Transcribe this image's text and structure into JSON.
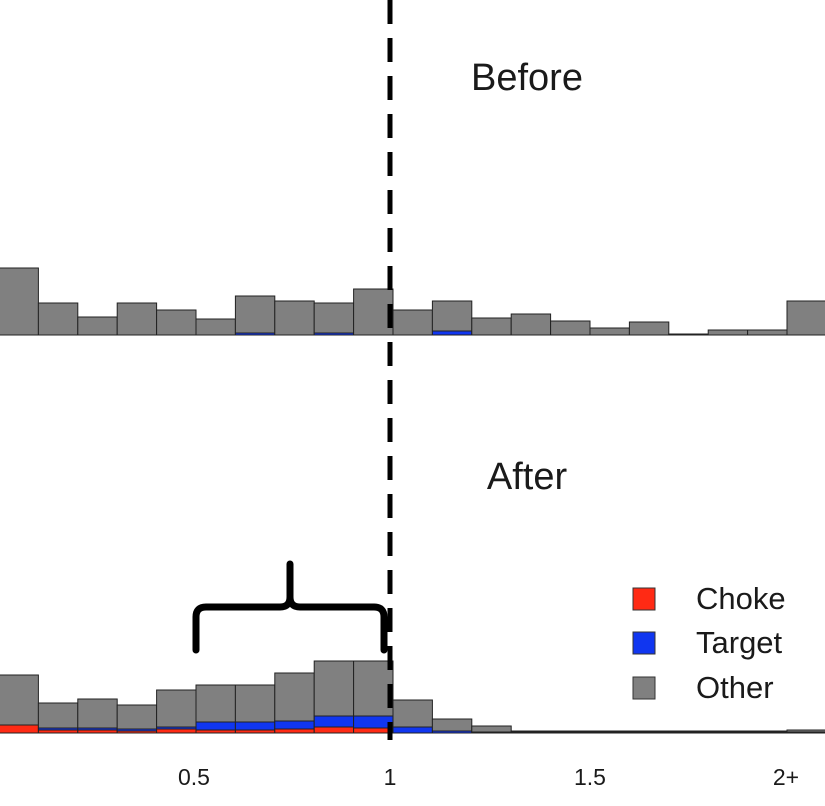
{
  "chart_data": [
    {
      "type": "bar",
      "stacked": true,
      "title": "Before",
      "x_bins": [
        "0-0.1",
        "0.1-0.2",
        "0.2-0.3",
        "0.3-0.4",
        "0.4-0.5",
        "0.5-0.6",
        "0.6-0.7",
        "0.7-0.8",
        "0.8-0.9",
        "0.9-1.0",
        "1.0-1.1",
        "1.1-1.2",
        "1.2-1.3",
        "1.3-1.4",
        "1.4-1.5",
        "1.5-1.6",
        "1.6-1.7",
        "1.7-1.8",
        "1.8-1.9",
        "1.9-2.0",
        "2+"
      ],
      "series": [
        {
          "name": "Choke",
          "color": "#ff2a14",
          "values": [
            0,
            0,
            0,
            0,
            0,
            0,
            0,
            0,
            0,
            0,
            0,
            0,
            0,
            0,
            0,
            0,
            0,
            0,
            0,
            0,
            0
          ]
        },
        {
          "name": "Target",
          "color": "#1036f0",
          "values": [
            0,
            0,
            0,
            0,
            0,
            0,
            2,
            0,
            2,
            0,
            0,
            4,
            0,
            0,
            0,
            0,
            0,
            0,
            0,
            0,
            0
          ]
        },
        {
          "name": "Other",
          "color": "#808080",
          "values": [
            67,
            32,
            18,
            32,
            25,
            16,
            37,
            34,
            30,
            46,
            25,
            30,
            17,
            21,
            14,
            7,
            13,
            1,
            5,
            5,
            34
          ]
        }
      ],
      "x_reference_line": 1.0
    },
    {
      "type": "bar",
      "stacked": true,
      "title": "After",
      "x_bins": [
        "0-0.1",
        "0.1-0.2",
        "0.2-0.3",
        "0.3-0.4",
        "0.4-0.5",
        "0.5-0.6",
        "0.6-0.7",
        "0.7-0.8",
        "0.8-0.9",
        "0.9-1.0",
        "1.0-1.1",
        "1.1-1.2",
        "1.2-1.3",
        "1.3-1.4",
        "1.4-1.5",
        "1.5-1.6",
        "1.6-1.7",
        "1.7-1.8",
        "1.8-1.9",
        "1.9-2.0",
        "2+"
      ],
      "series": [
        {
          "name": "Choke",
          "color": "#ff2a14",
          "values": [
            8,
            3,
            3,
            2,
            4,
            3,
            3,
            4,
            6,
            5,
            0,
            0,
            0,
            0,
            1,
            1,
            1,
            0,
            1,
            1,
            1
          ]
        },
        {
          "name": "Target",
          "color": "#1036f0",
          "values": [
            0,
            2,
            2,
            2,
            2,
            8,
            8,
            8,
            11,
            12,
            6,
            2,
            1,
            1,
            0,
            0,
            0,
            1,
            0,
            0,
            0
          ]
        },
        {
          "name": "Other",
          "color": "#808080",
          "values": [
            50,
            25,
            29,
            24,
            37,
            37,
            37,
            48,
            55,
            55,
            27,
            12,
            6,
            1,
            1,
            1,
            1,
            1,
            1,
            1,
            2
          ]
        }
      ],
      "x_reference_line": 1.0,
      "annotation": "brace spanning 0.5 to 1.0"
    }
  ],
  "x_axis": {
    "ticks": [
      {
        "value": 0.5,
        "label": "0.5"
      },
      {
        "value": 1.0,
        "label": "1"
      },
      {
        "value": 1.5,
        "label": "1.5"
      },
      {
        "value": 2.0,
        "label": "2+"
      }
    ]
  },
  "legend": {
    "placement": "bottom-right",
    "items": [
      {
        "name": "Choke",
        "color": "#ff2a14"
      },
      {
        "name": "Target",
        "color": "#1036f0"
      },
      {
        "name": "Other",
        "color": "#808080"
      }
    ]
  }
}
